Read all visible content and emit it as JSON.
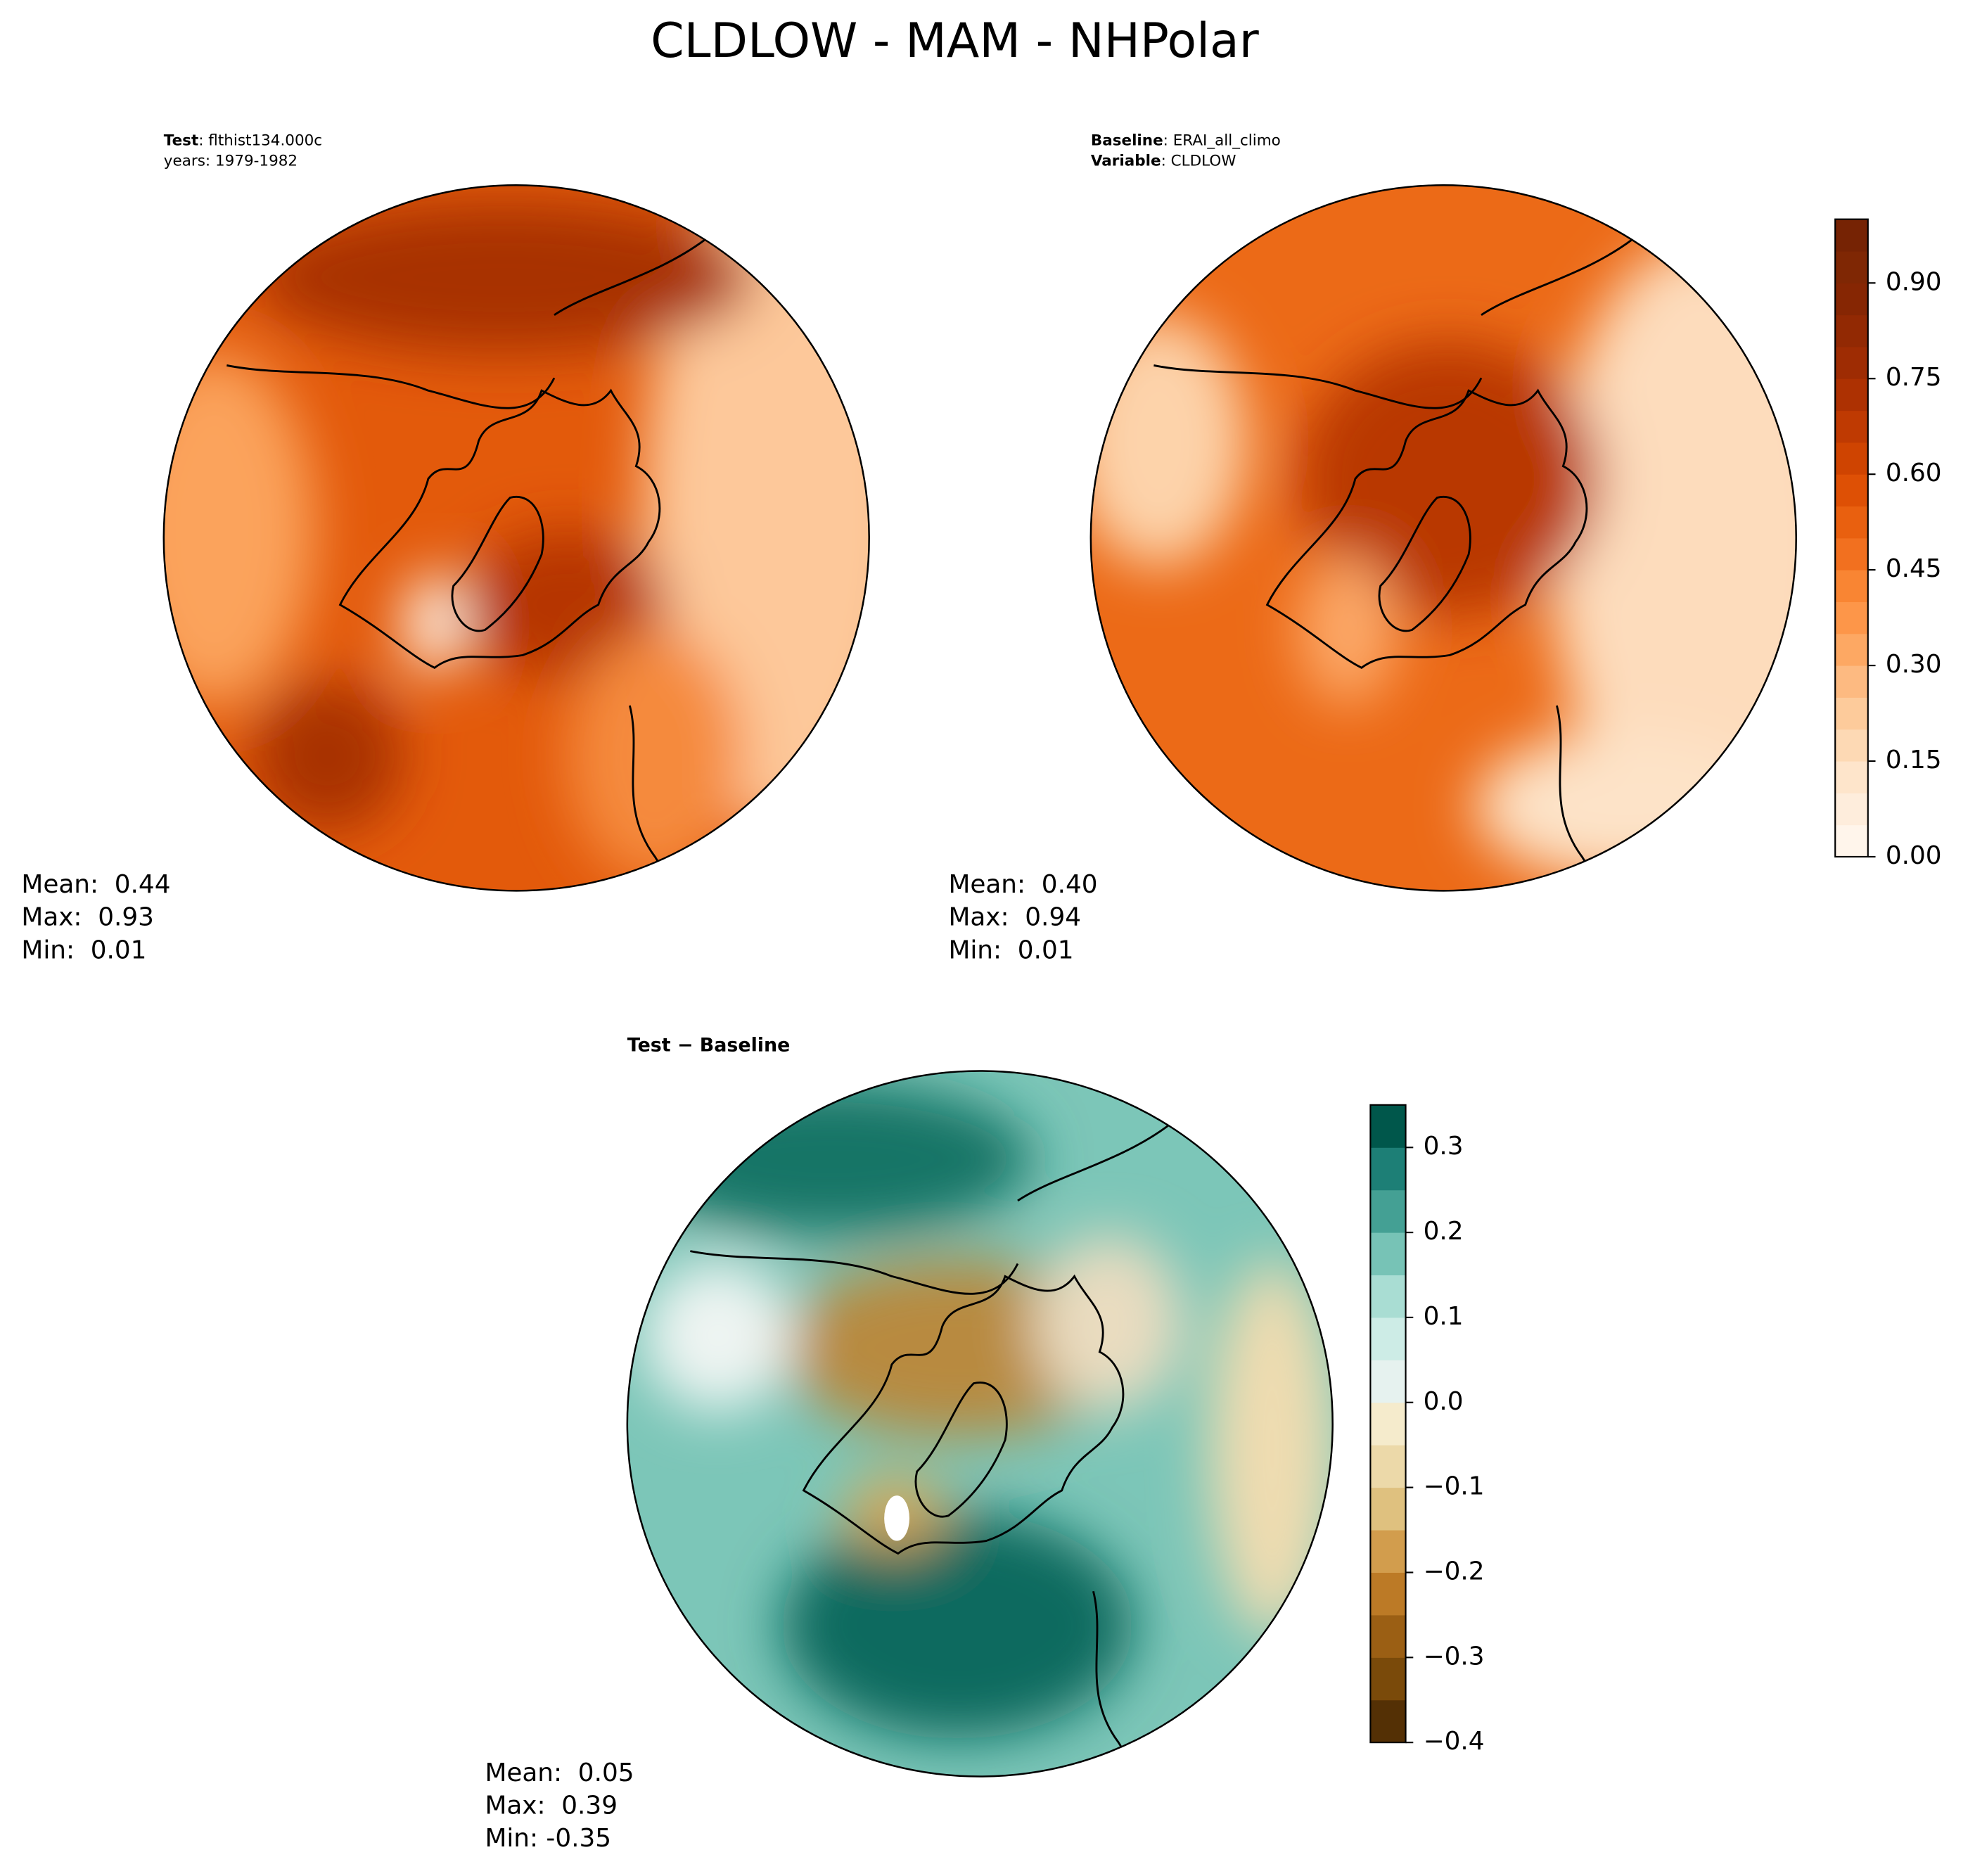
{
  "title": "CLDLOW - MAM - NHPolar",
  "panels": [
    {
      "lines": [
        {
          "key": "Test",
          "value": ": flthist134.000c"
        },
        {
          "value": "years: 1979-1982"
        }
      ],
      "stats": [
        "Mean:  0.44",
        "Max:  0.93",
        "Min:  0.01"
      ]
    },
    {
      "lines": [
        {
          "key": "Baseline",
          "value": ": ERAI_all_climo"
        },
        {
          "key": "Variable",
          "value": ": CLDLOW"
        }
      ],
      "stats": [
        "Mean:  0.40",
        "Max:  0.94",
        "Min:  0.01"
      ]
    },
    {
      "lines": [
        {
          "key": "Test − Baseline"
        }
      ],
      "stats": [
        "Mean:  0.05",
        "Max:  0.39",
        "Min: -0.35"
      ]
    }
  ],
  "colorbars": [
    {
      "lim": [
        0,
        1
      ],
      "colors": [
        "#fff5eb",
        "#feeddc",
        "#fee5cb",
        "#fdd9b4",
        "#fdcb9b",
        "#fdba81",
        "#fda863",
        "#fd9649",
        "#f98533",
        "#f2701f",
        "#e9600f",
        "#de5005",
        "#cf4401",
        "#bf3a02",
        "#ad3102",
        "#9e2c03",
        "#922903",
        "#862603",
        "#7f2704",
        "#762304"
      ],
      "ticks": [
        {
          "value": 0,
          "label": "0.00"
        },
        {
          "value": 0.15,
          "label": "0.15"
        },
        {
          "value": 0.3,
          "label": "0.30"
        },
        {
          "value": 0.45,
          "label": "0.45"
        },
        {
          "value": 0.6,
          "label": "0.60"
        },
        {
          "value": 0.75,
          "label": "0.75"
        },
        {
          "value": 0.9,
          "label": "0.90"
        }
      ]
    },
    {
      "lim": [
        -0.4,
        0.35
      ],
      "colors": [
        "#543005",
        "#7a4a0a",
        "#9b5f14",
        "#bc7a26",
        "#d29d4d",
        "#dfc17f",
        "#ecd9a9",
        "#f5ebcc",
        "#e6f2ef",
        "#cdece6",
        "#a9ddd3",
        "#77c3b6",
        "#44a094",
        "#1d7f76",
        "#00574b"
      ],
      "ticks": [
        {
          "value": -0.4,
          "label": "−0.4"
        },
        {
          "value": -0.3,
          "label": "−0.3"
        },
        {
          "value": -0.2,
          "label": "−0.2"
        },
        {
          "value": -0.1,
          "label": "−0.1"
        },
        {
          "value": 0,
          "label": "0.0"
        },
        {
          "value": 0.1,
          "label": "0.1"
        },
        {
          "value": 0.2,
          "label": "0.2"
        },
        {
          "value": 0.3,
          "label": "0.3"
        }
      ]
    }
  ]
}
